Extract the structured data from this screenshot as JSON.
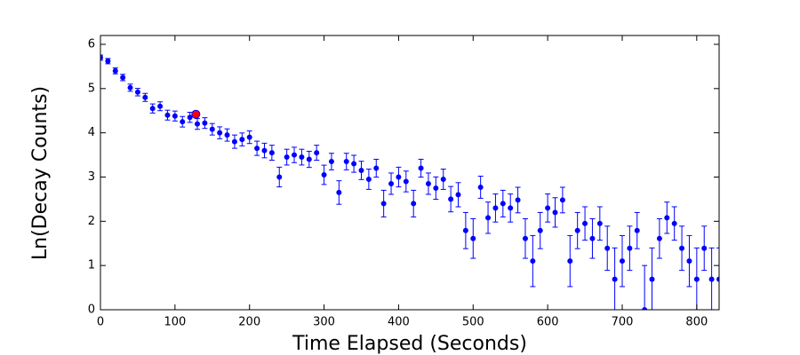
{
  "chart_data": {
    "type": "errorbar-scatter",
    "xlabel": "Time Elapsed (Seconds)",
    "ylabel": "Ln(Decay Counts)",
    "xlim": [
      0,
      830
    ],
    "ylim": [
      0,
      6.2
    ],
    "xticks": [
      0,
      100,
      200,
      300,
      400,
      500,
      600,
      700,
      800
    ],
    "yticks": [
      0,
      1,
      2,
      3,
      4,
      5,
      6
    ],
    "color": "#0000ff",
    "x": [
      0,
      10,
      20,
      30,
      40,
      50,
      60,
      70,
      80,
      90,
      100,
      110,
      120,
      130,
      140,
      150,
      160,
      170,
      180,
      190,
      200,
      210,
      220,
      230,
      240,
      250,
      260,
      270,
      280,
      290,
      300,
      310,
      320,
      330,
      340,
      350,
      360,
      370,
      380,
      390,
      400,
      410,
      420,
      430,
      440,
      450,
      460,
      470,
      480,
      490,
      500,
      510,
      520,
      530,
      540,
      550,
      560,
      570,
      580,
      590,
      600,
      610,
      620,
      630,
      640,
      650,
      660,
      670,
      680,
      690,
      700,
      710,
      720,
      730,
      740,
      750,
      760,
      770,
      780,
      790,
      800,
      810,
      820,
      830
    ],
    "values": [
      5.7,
      5.62,
      5.4,
      5.25,
      5.02,
      4.92,
      4.8,
      4.55,
      4.6,
      4.4,
      4.38,
      4.25,
      4.35,
      4.2,
      4.22,
      4.08,
      4.0,
      3.95,
      3.8,
      3.85,
      3.9,
      3.65,
      3.6,
      3.55,
      3.0,
      3.45,
      3.5,
      3.45,
      3.4,
      3.55,
      3.05,
      3.35,
      2.65,
      3.35,
      3.3,
      3.15,
      2.95,
      3.2,
      2.4,
      2.85,
      3.0,
      2.9,
      2.4,
      3.2,
      2.85,
      2.75,
      2.95,
      2.5,
      2.6,
      1.79,
      1.61,
      2.77,
      2.08,
      2.3,
      2.4,
      2.3,
      2.48,
      1.61,
      1.1,
      1.79,
      2.3,
      2.2,
      2.48,
      1.1,
      1.79,
      1.95,
      1.61,
      1.95,
      1.39,
      0.69,
      1.1,
      1.39,
      1.79,
      0.0,
      0.69,
      1.61,
      2.08,
      1.95,
      1.39,
      1.1,
      0.69,
      1.39,
      0.69,
      0.69
    ],
    "errors": [
      0.058,
      0.06,
      0.067,
      0.072,
      0.081,
      0.085,
      0.091,
      0.103,
      0.1,
      0.111,
      0.112,
      0.119,
      0.114,
      0.122,
      0.121,
      0.13,
      0.135,
      0.139,
      0.15,
      0.146,
      0.142,
      0.161,
      0.165,
      0.169,
      0.223,
      0.178,
      0.174,
      0.178,
      0.183,
      0.169,
      0.218,
      0.187,
      0.266,
      0.187,
      0.192,
      0.207,
      0.229,
      0.202,
      0.301,
      0.241,
      0.223,
      0.235,
      0.301,
      0.202,
      0.241,
      0.253,
      0.229,
      0.287,
      0.273,
      0.409,
      0.447,
      0.25,
      0.354,
      0.317,
      0.301,
      0.317,
      0.289,
      0.447,
      0.577,
      0.409,
      0.317,
      0.333,
      0.289,
      0.577,
      0.409,
      0.378,
      0.447,
      0.378,
      0.5,
      0.707,
      0.577,
      0.5,
      0.409,
      1.0,
      0.707,
      0.447,
      0.354,
      0.378,
      0.5,
      0.577,
      0.707,
      0.5,
      0.707,
      0.707
    ],
    "highlight": {
      "x": 128,
      "y": 4.42,
      "color": "#ff0000"
    }
  }
}
